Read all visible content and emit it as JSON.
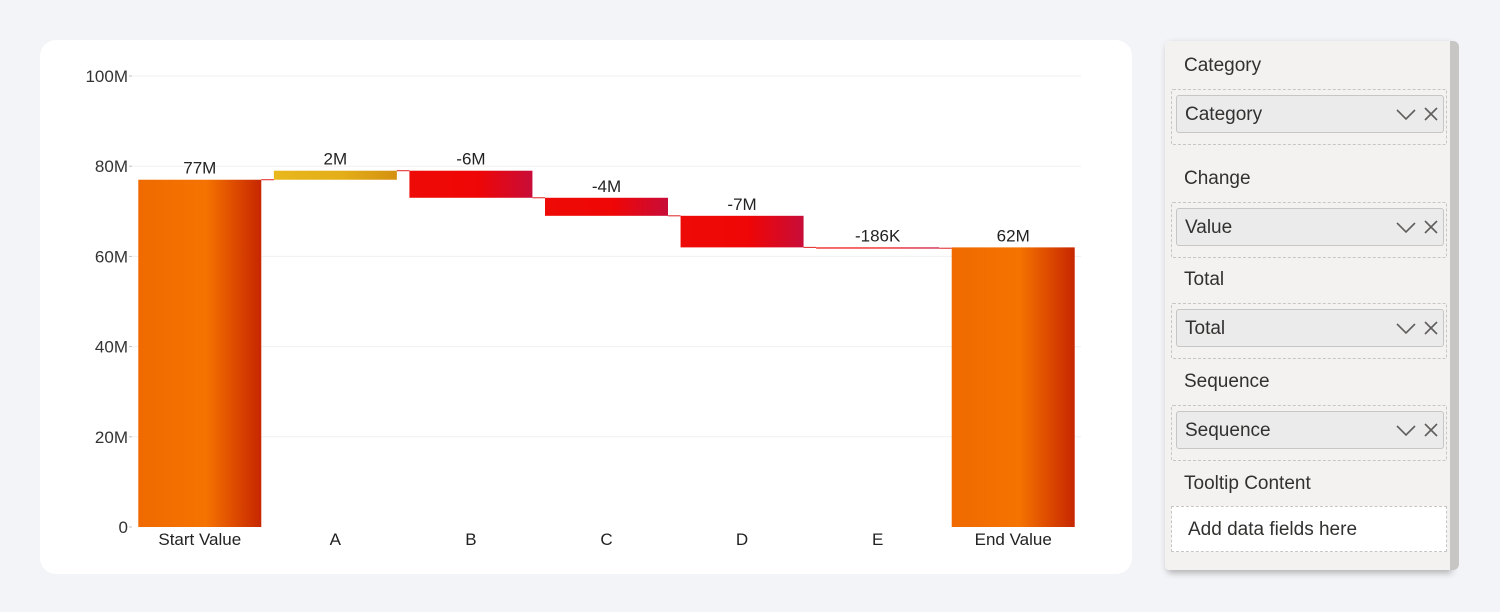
{
  "chart_data": {
    "type": "waterfall",
    "categories": [
      "Start Value",
      "A",
      "B",
      "C",
      "D",
      "E",
      "End Value"
    ],
    "values": [
      77,
      2,
      -6,
      -4,
      -7,
      -0.186,
      62
    ],
    "is_total": [
      true,
      false,
      false,
      false,
      false,
      false,
      true
    ],
    "data_labels": [
      "77M",
      "2M",
      "-6M",
      "-4M",
      "-7M",
      "-186K",
      "62M"
    ],
    "y_ticks": [
      0,
      20,
      40,
      60,
      80,
      100
    ],
    "y_tick_labels": [
      "0",
      "20M",
      "40M",
      "60M",
      "80M",
      "100M"
    ],
    "ylim": [
      0,
      100
    ],
    "grid": true,
    "colors": {
      "total": "#f57000",
      "increase": "#e8b41b",
      "decrease": "#ee0606",
      "connector": "#e02020",
      "grid": "#f0f0f0"
    }
  },
  "panel": {
    "wells": [
      {
        "title": "Category",
        "field": "Category"
      },
      {
        "title": "Change",
        "field": "Value"
      },
      {
        "title": "Total",
        "field": "Total"
      },
      {
        "title": "Sequence",
        "field": "Sequence"
      }
    ],
    "tooltip": {
      "title": "Tooltip Content",
      "placeholder": "Add data fields here"
    }
  }
}
